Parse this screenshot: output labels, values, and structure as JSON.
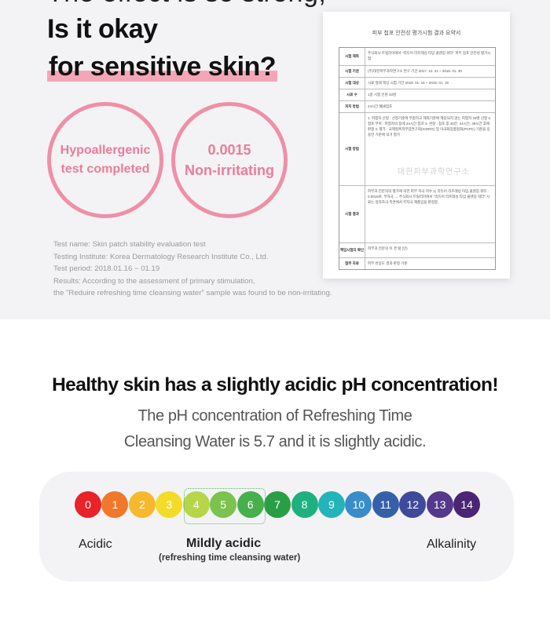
{
  "headline": {
    "partial_line": "The effect is so strong,",
    "line1": "Is it okay",
    "line2": "for sensitive skin?"
  },
  "badges": [
    {
      "line1": "Hypoallergenic",
      "line2": "test completed"
    },
    {
      "line1": "0.0015",
      "line2": "Non-irritating"
    }
  ],
  "test_notes": [
    "Test name: Skin patch stability evaluation test",
    "Testing Institute: Korea Dermatology Research Institute Co., Ltd.",
    "Test period: 2018.01.16 ~ 01.19",
    "Results: According to the assessment of primary stimulation,",
    "the \"Reduire refreshing time cleansing water\" sample was found to be non-irritating."
  ],
  "report": {
    "title": "피부 첩포 안전성 평가시험 결과 요약서",
    "rows": [
      {
        "label": "시험 제목",
        "value": "주식회사 트릴리아에서 \"리듀어 리프레싱 타임 클렌징 워터\" 피부 첩포 안전성 평가시험"
      },
      {
        "label": "시험 기관",
        "value": "(주)대한피부과학연구소   연구 기간  2017. 12. 21 ~ 2018. 01. 30"
      },
      {
        "label": "시험 대상",
        "value": "시료 형태  액상   시험 기간  2018. 01. 16 ~ 2018. 01. 19"
      },
      {
        "label": "시료 수",
        "value": "1종   시험 인원  33명"
      },
      {
        "label": "처치 방법",
        "value": "24시간 폐쇄첩포"
      },
      {
        "label": "시험 방법",
        "value": "1. 피험자 선정 : 선정기준에 부합하고 제외기준에 해당되지 않는 피험자 33명 선정 2. 첩포 부위 : 피험자의 등에 24시간 첩포 3. 관찰 : 첩포 후 30분, 24시간, 48시간 후에 판정 4. 평가 : 국제접촉피부염연구회(ICDRG) 및 미국화장품협회(PCPC) 기준을 응용한 기준에 의거 평가"
      },
      {
        "label": "시험 결과",
        "value": "피부과 전문의의 평가에 의한 피부 자극 지수 1) 리듀어 리프레싱 타임 클렌징 워터 : 0.0015로, 무자극 → 주식회사 트릴리아에서 \"리듀어 리프레싱 타임 클렌징 워터\" 시료는 일차자극 측면에서 무자극 제품임을 판정함."
      },
      {
        "label": "책임시험자 확인",
        "value": "피부과 전문의   이 경 렬   (인)"
      },
      {
        "label": "첨부 자료",
        "value": "피부 반응도 결과 판정 기준"
      }
    ],
    "stamp": "대한피부과학연구소"
  },
  "ph_section": {
    "heading": "Healthy skin has a slightly acidic pH concentration!",
    "desc_line1": "The pH concentration of Refreshing Time",
    "desc_line2": "Cleansing Water is 5.7 and it is slightly acidic.",
    "scale": [
      {
        "label": "0",
        "color": "#e8232a"
      },
      {
        "label": "1",
        "color": "#f0782b"
      },
      {
        "label": "2",
        "color": "#f6b92d"
      },
      {
        "label": "3",
        "color": "#f2dc28"
      },
      {
        "label": "4",
        "color": "#b6d64a"
      },
      {
        "label": "5",
        "color": "#7cc24e"
      },
      {
        "label": "6",
        "color": "#47af4c"
      },
      {
        "label": "7",
        "color": "#2a9e44"
      },
      {
        "label": "8",
        "color": "#1eb17e"
      },
      {
        "label": "9",
        "color": "#24b3b8"
      },
      {
        "label": "10",
        "color": "#3a8cc8"
      },
      {
        "label": "11",
        "color": "#3560a8"
      },
      {
        "label": "12",
        "color": "#3f4a9a"
      },
      {
        "label": "13",
        "color": "#55388c"
      },
      {
        "label": "14",
        "color": "#4c2476"
      }
    ],
    "label_acidic": "Acidic",
    "label_mild": "Mildly acidic",
    "label_mild_sub": "(refreshing time cleansing water)",
    "label_alkaline": "Alkalinity"
  }
}
